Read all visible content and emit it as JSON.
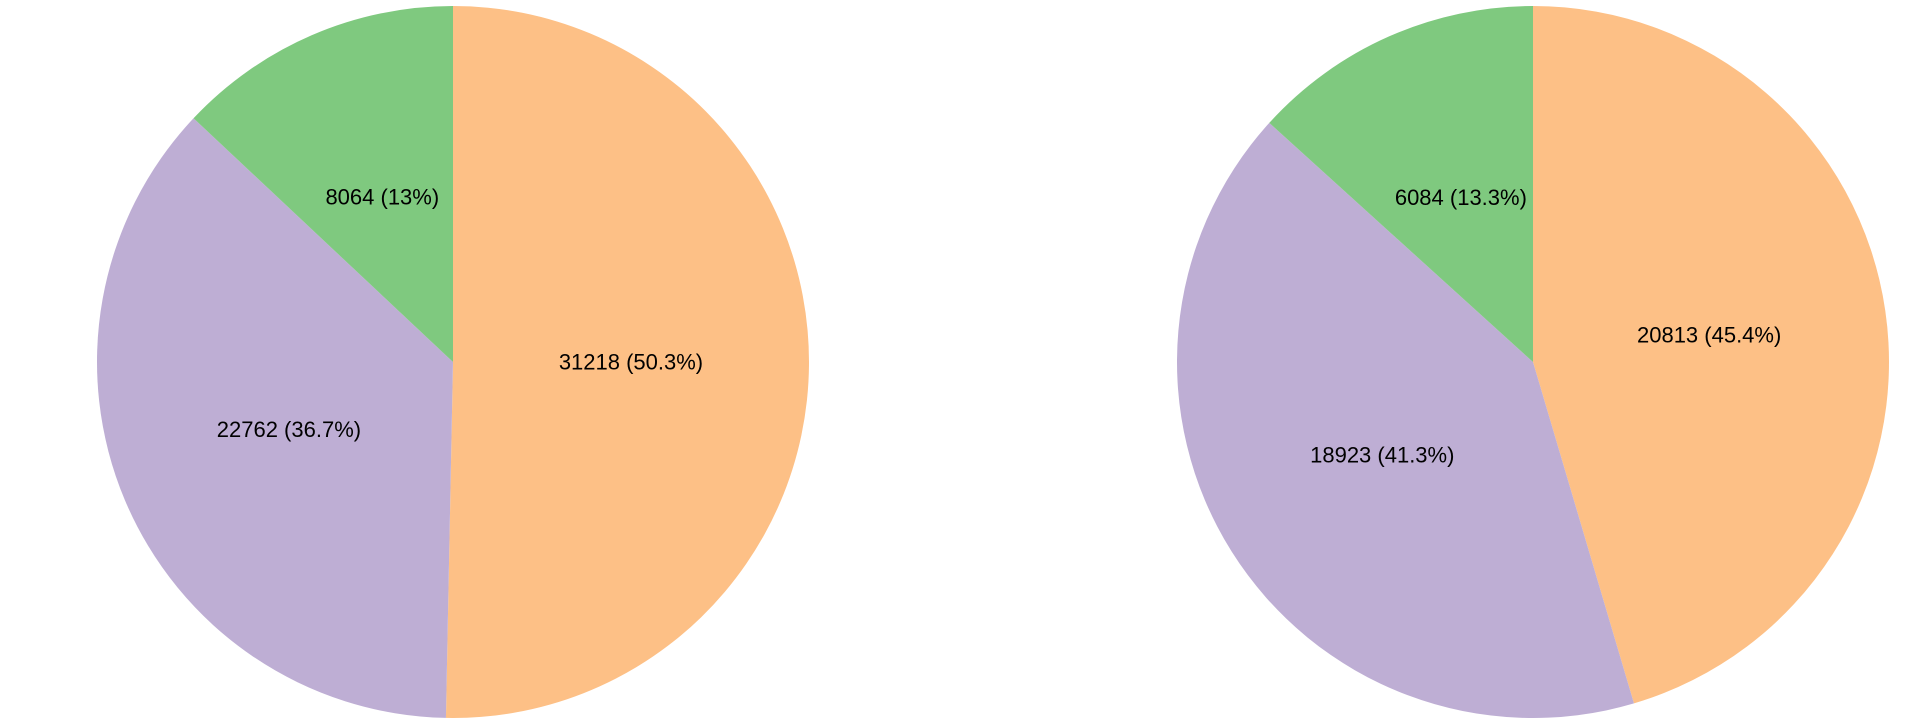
{
  "chart_data": [
    {
      "type": "pie",
      "categories": [
        "",
        "",
        ""
      ],
      "values": [
        31218,
        22762,
        8064
      ],
      "labels": [
        "31218 (50.3%)",
        "22762 (36.7%)",
        "8064 (13%)"
      ],
      "colors": [
        "#fdc086",
        "#beaed4",
        "#7fc97f"
      ],
      "title": "",
      "legend": "none"
    },
    {
      "type": "pie",
      "categories": [
        "",
        "",
        ""
      ],
      "values": [
        20813,
        18923,
        6084
      ],
      "labels": [
        "20813 (45.4%)",
        "18923 (41.3%)",
        "6084 (13.3%)"
      ],
      "colors": [
        "#fdc086",
        "#beaed4",
        "#7fc97f"
      ],
      "title": "",
      "legend": "none"
    }
  ]
}
